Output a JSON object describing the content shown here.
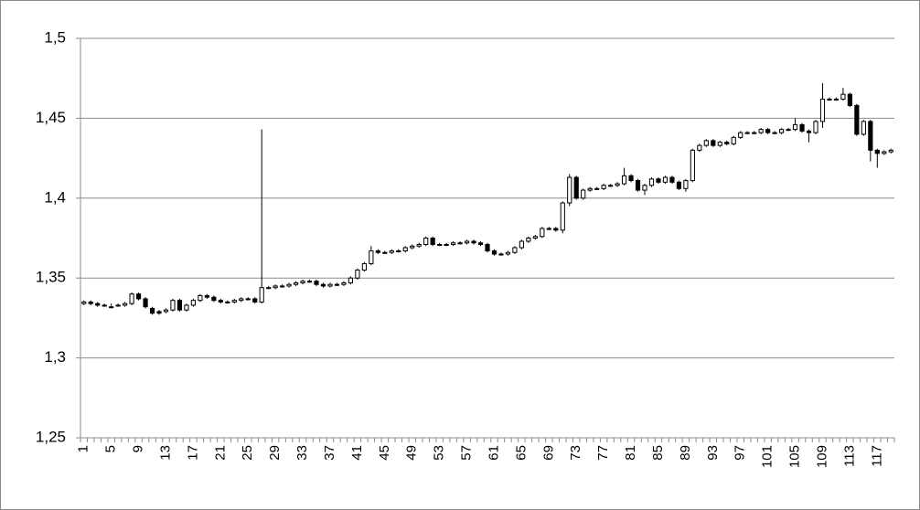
{
  "chart_data": {
    "type": "candlestick",
    "categories": [
      1,
      null,
      null,
      null,
      5,
      null,
      null,
      null,
      9,
      null,
      null,
      null,
      13,
      null,
      null,
      null,
      17,
      null,
      null,
      null,
      21,
      null,
      null,
      null,
      25,
      null,
      null,
      null,
      29,
      null,
      null,
      null,
      33,
      null,
      null,
      null,
      37,
      null,
      null,
      null,
      41,
      null,
      null,
      null,
      45,
      null,
      null,
      null,
      49,
      null,
      null,
      null,
      53,
      null,
      null,
      null,
      57,
      null,
      null,
      null,
      61,
      null,
      null,
      null,
      65,
      null,
      null,
      null,
      69,
      null,
      null,
      null,
      73,
      null,
      null,
      null,
      77,
      null,
      null,
      null,
      81,
      null,
      null,
      null,
      85,
      null,
      null,
      null,
      89,
      null,
      null,
      null,
      93,
      null,
      null,
      null,
      97,
      null,
      null,
      null,
      101,
      null,
      null,
      null,
      105,
      null,
      null,
      null,
      109,
      null,
      null,
      null,
      113,
      null,
      null,
      null,
      117,
      null,
      null
    ],
    "open": [
      1.334,
      1.335,
      1.334,
      1.333,
      1.332,
      1.333,
      1.333,
      1.334,
      1.34,
      1.337,
      1.331,
      1.329,
      1.329,
      1.33,
      1.336,
      1.33,
      1.333,
      1.336,
      1.339,
      1.338,
      1.336,
      1.335,
      1.335,
      1.336,
      1.337,
      1.337,
      1.335,
      1.344,
      1.344,
      1.345,
      1.345,
      1.346,
      1.347,
      1.348,
      1.348,
      1.346,
      1.345,
      1.346,
      1.346,
      1.347,
      1.35,
      1.355,
      1.359,
      1.367,
      1.366,
      1.366,
      1.367,
      1.367,
      1.369,
      1.37,
      1.371,
      1.375,
      1.371,
      1.371,
      1.371,
      1.372,
      1.372,
      1.373,
      1.372,
      1.371,
      1.367,
      1.365,
      1.365,
      1.366,
      1.369,
      1.373,
      1.375,
      1.376,
      1.381,
      1.381,
      1.38,
      1.397,
      1.413,
      1.4,
      1.405,
      1.406,
      1.406,
      1.408,
      1.408,
      1.409,
      1.414,
      1.411,
      1.405,
      1.408,
      1.412,
      1.41,
      1.413,
      1.41,
      1.406,
      1.411,
      1.43,
      1.433,
      1.436,
      1.433,
      1.435,
      1.434,
      1.438,
      1.441,
      1.441,
      1.441,
      1.443,
      1.441,
      1.441,
      1.443,
      1.443,
      1.446,
      1.442,
      1.441,
      1.448,
      1.462,
      1.462,
      1.462,
      1.465,
      1.458,
      1.44,
      1.448,
      1.43,
      1.428,
      1.429
    ],
    "high": [
      1.336,
      1.336,
      1.335,
      1.334,
      1.334,
      1.334,
      1.335,
      1.341,
      1.341,
      1.338,
      1.332,
      1.33,
      1.331,
      1.337,
      1.337,
      1.334,
      1.337,
      1.34,
      1.34,
      1.339,
      1.337,
      1.336,
      1.337,
      1.338,
      1.338,
      1.338,
      1.443,
      1.345,
      1.346,
      1.346,
      1.347,
      1.348,
      1.349,
      1.349,
      1.349,
      1.347,
      1.347,
      1.347,
      1.348,
      1.351,
      1.356,
      1.36,
      1.37,
      1.368,
      1.367,
      1.368,
      1.368,
      1.37,
      1.371,
      1.372,
      1.376,
      1.376,
      1.372,
      1.372,
      1.373,
      1.373,
      1.374,
      1.374,
      1.373,
      1.372,
      1.368,
      1.366,
      1.367,
      1.37,
      1.374,
      1.376,
      1.377,
      1.382,
      1.382,
      1.382,
      1.398,
      1.415,
      1.414,
      1.406,
      1.407,
      1.407,
      1.409,
      1.409,
      1.41,
      1.419,
      1.415,
      1.412,
      1.409,
      1.413,
      1.413,
      1.414,
      1.414,
      1.411,
      1.412,
      1.431,
      1.434,
      1.437,
      1.437,
      1.436,
      1.436,
      1.439,
      1.442,
      1.442,
      1.442,
      1.444,
      1.444,
      1.442,
      1.444,
      1.444,
      1.45,
      1.447,
      1.443,
      1.449,
      1.472,
      1.463,
      1.463,
      1.469,
      1.466,
      1.459,
      1.449,
      1.449,
      1.431,
      1.43,
      1.431
    ],
    "low": [
      1.333,
      1.333,
      1.332,
      1.332,
      1.331,
      1.332,
      1.332,
      1.333,
      1.336,
      1.331,
      1.327,
      1.327,
      1.328,
      1.329,
      1.329,
      1.329,
      1.332,
      1.335,
      1.337,
      1.335,
      1.334,
      1.334,
      1.334,
      1.335,
      1.336,
      1.334,
      1.334,
      1.343,
      1.343,
      1.344,
      1.344,
      1.345,
      1.346,
      1.347,
      1.345,
      1.344,
      1.344,
      1.345,
      1.345,
      1.346,
      1.349,
      1.354,
      1.358,
      1.365,
      1.365,
      1.365,
      1.366,
      1.366,
      1.368,
      1.369,
      1.37,
      1.37,
      1.37,
      1.37,
      1.37,
      1.371,
      1.371,
      1.371,
      1.37,
      1.366,
      1.364,
      1.364,
      1.364,
      1.365,
      1.368,
      1.372,
      1.374,
      1.375,
      1.38,
      1.379,
      1.378,
      1.395,
      1.399,
      1.399,
      1.404,
      1.405,
      1.405,
      1.407,
      1.407,
      1.408,
      1.41,
      1.404,
      1.402,
      1.407,
      1.409,
      1.409,
      1.409,
      1.405,
      1.404,
      1.41,
      1.429,
      1.432,
      1.432,
      1.432,
      1.433,
      1.433,
      1.437,
      1.44,
      1.44,
      1.44,
      1.44,
      1.44,
      1.44,
      1.442,
      1.442,
      1.441,
      1.435,
      1.44,
      1.444,
      1.461,
      1.461,
      1.461,
      1.457,
      1.439,
      1.439,
      1.423,
      1.419,
      1.427,
      1.428
    ],
    "close": [
      1.335,
      1.334,
      1.333,
      1.333,
      1.332,
      1.333,
      1.334,
      1.34,
      1.337,
      1.332,
      1.328,
      1.328,
      1.33,
      1.336,
      1.33,
      1.333,
      1.336,
      1.339,
      1.338,
      1.336,
      1.335,
      1.335,
      1.336,
      1.337,
      1.337,
      1.335,
      1.344,
      1.344,
      1.345,
      1.345,
      1.346,
      1.347,
      1.348,
      1.348,
      1.346,
      1.345,
      1.346,
      1.346,
      1.347,
      1.35,
      1.355,
      1.359,
      1.367,
      1.366,
      1.366,
      1.367,
      1.367,
      1.369,
      1.37,
      1.371,
      1.375,
      1.371,
      1.371,
      1.371,
      1.372,
      1.372,
      1.373,
      1.372,
      1.371,
      1.367,
      1.365,
      1.365,
      1.366,
      1.369,
      1.373,
      1.375,
      1.376,
      1.381,
      1.381,
      1.38,
      1.397,
      1.413,
      1.4,
      1.405,
      1.406,
      1.406,
      1.408,
      1.408,
      1.409,
      1.414,
      1.411,
      1.405,
      1.408,
      1.412,
      1.41,
      1.413,
      1.41,
      1.406,
      1.411,
      1.43,
      1.433,
      1.436,
      1.433,
      1.435,
      1.434,
      1.438,
      1.441,
      1.441,
      1.441,
      1.443,
      1.441,
      1.441,
      1.443,
      1.443,
      1.446,
      1.442,
      1.441,
      1.448,
      1.462,
      1.462,
      1.462,
      1.465,
      1.458,
      1.44,
      1.448,
      1.43,
      1.428,
      1.429,
      1.43
    ],
    "up_color": "#ffffff",
    "down_color": "#000000",
    "ylim": [
      1.25,
      1.5
    ],
    "yticks": [
      {
        "value": 1.25,
        "label": "1,25"
      },
      {
        "value": 1.3,
        "label": "1,3"
      },
      {
        "value": 1.35,
        "label": "1,35"
      },
      {
        "value": 1.4,
        "label": "1,4"
      },
      {
        "value": 1.45,
        "label": "1,45"
      },
      {
        "value": 1.5,
        "label": "1,5"
      }
    ],
    "grid": true
  }
}
